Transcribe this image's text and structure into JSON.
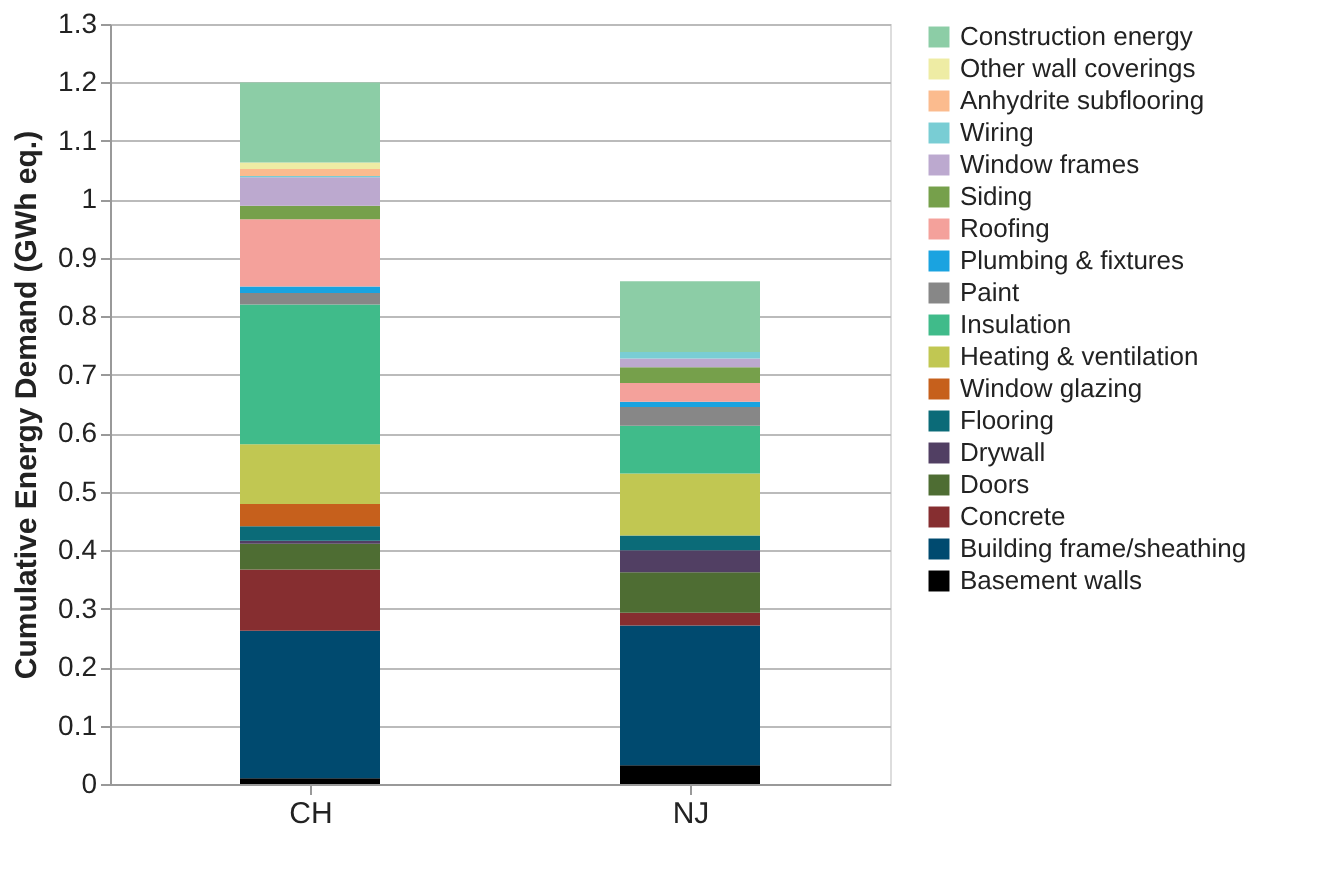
{
  "chart_data": {
    "type": "bar",
    "stacked": true,
    "ylabel": "Cumulative Energy Demand (GWh eq.)",
    "categories": [
      "CH",
      "NJ"
    ],
    "ylim": [
      0,
      1.3
    ],
    "yticks": [
      0,
      0.1,
      0.2,
      0.3,
      0.4,
      0.5,
      0.6,
      0.7,
      0.8,
      0.9,
      1,
      1.1,
      1.2,
      1.3
    ],
    "grid": "y",
    "legend": "right",
    "series": [
      {
        "name": "Basement walls",
        "color": "#000000",
        "values": [
          0.01,
          0.032
        ]
      },
      {
        "name": "Building frame/sheathing",
        "color": "#004a6f",
        "values": [
          0.252,
          0.239
        ]
      },
      {
        "name": "Concrete",
        "color": "#862e30",
        "values": [
          0.105,
          0.022
        ]
      },
      {
        "name": "Doors",
        "color": "#4e6d33",
        "values": [
          0.044,
          0.069
        ]
      },
      {
        "name": "Drywall",
        "color": "#513f63",
        "values": [
          0.005,
          0.038
        ]
      },
      {
        "name": "Flooring",
        "color": "#0b6b78",
        "values": [
          0.025,
          0.025
        ]
      },
      {
        "name": "Window glazing",
        "color": "#c6601c",
        "values": [
          0.038,
          0
        ]
      },
      {
        "name": "Heating & ventilation",
        "color": "#c1c752",
        "values": [
          0.102,
          0.106
        ]
      },
      {
        "name": "Insulation",
        "color": "#40bb8a",
        "values": [
          0.239,
          0.082
        ]
      },
      {
        "name": "Paint",
        "color": "#878787",
        "values": [
          0.02,
          0.032
        ]
      },
      {
        "name": "Plumbing & fixtures",
        "color": "#1aa3e0",
        "values": [
          0.011,
          0.009
        ]
      },
      {
        "name": "Roofing",
        "color": "#f4a19b",
        "values": [
          0.115,
          0.032
        ]
      },
      {
        "name": "Siding",
        "color": "#76a04b",
        "values": [
          0.023,
          0.027
        ]
      },
      {
        "name": "Window frames",
        "color": "#bca9cf",
        "values": [
          0.049,
          0.015
        ]
      },
      {
        "name": "Wiring",
        "color": "#79cdd4",
        "values": [
          0.002,
          0.011
        ]
      },
      {
        "name": "Anhydrite subflooring",
        "color": "#fbbb8e",
        "values": [
          0.012,
          0
        ]
      },
      {
        "name": "Other wall coverings",
        "color": "#eeeca4",
        "values": [
          0.011,
          0
        ]
      },
      {
        "name": "Construction energy",
        "color": "#8ccda6",
        "values": [
          0.137,
          0.121
        ]
      }
    ]
  }
}
